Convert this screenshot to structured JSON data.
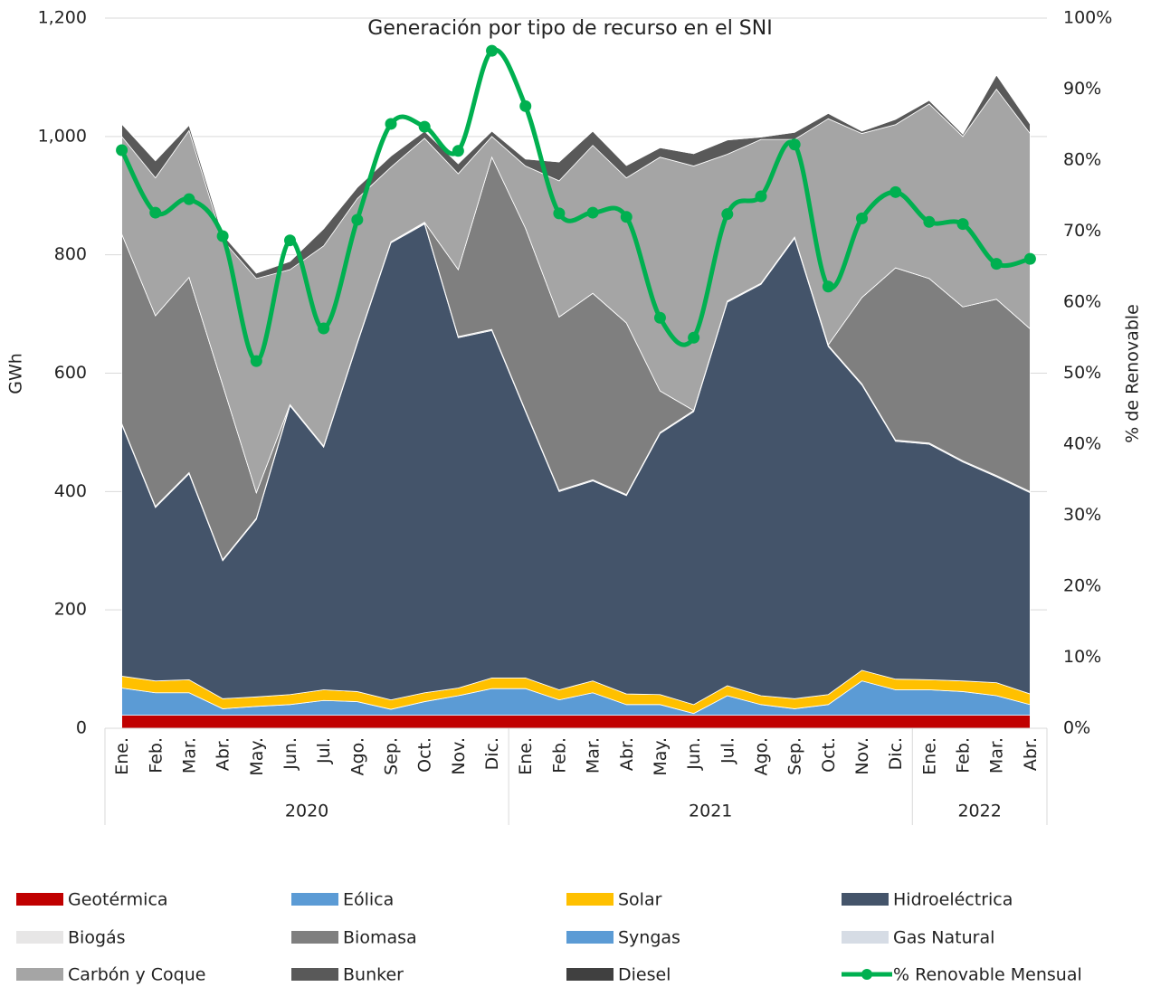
{
  "chart_data": {
    "type": "stacked_area_line",
    "title": "Generación por tipo de recurso en el  SNI",
    "y_label": "GWh",
    "y2_label": "% de Renovable",
    "categories": [
      "Ene.",
      "Feb.",
      "Mar.",
      "Abr.",
      "May.",
      "Jun.",
      "Jul.",
      "Ago.",
      "Sep.",
      "Oct.",
      "Nov.",
      "Dic.",
      "Ene.",
      "Feb.",
      "Mar.",
      "Abr.",
      "May.",
      "Jun.",
      "Jul.",
      "Ago.",
      "Sep.",
      "Oct.",
      "Nov.",
      "Dic.",
      "Ene.",
      "Feb.",
      "Mar.",
      "Abr."
    ],
    "year_groups": [
      {
        "label": "2020",
        "months": 12
      },
      {
        "label": "2021",
        "months": 12
      },
      {
        "label": "2022",
        "months": 4
      }
    ],
    "ylim": [
      0,
      1200
    ],
    "yticks": [
      0,
      200,
      400,
      600,
      800,
      {
        "value": 1000,
        "label": "1,000"
      },
      {
        "value": 1200,
        "label": "1,200"
      }
    ],
    "y2lim": [
      0,
      100
    ],
    "y2ticks": [
      {
        "value": 0,
        "label": "0%"
      },
      {
        "value": 10,
        "label": "10%"
      },
      {
        "value": 20,
        "label": "20%"
      },
      {
        "value": 30,
        "label": "30%"
      },
      {
        "value": 40,
        "label": "40%"
      },
      {
        "value": 50,
        "label": "50%"
      },
      {
        "value": 60,
        "label": "60%"
      },
      {
        "value": 70,
        "label": "70%"
      },
      {
        "value": 80,
        "label": "80%"
      },
      {
        "value": 90,
        "label": "90%"
      },
      {
        "value": 100,
        "label": "100%"
      }
    ],
    "grid": true,
    "legend": "bottom",
    "series": [
      {
        "name": "Geotérmica",
        "color": "#c00000",
        "values": [
          22,
          22,
          22,
          22,
          22,
          22,
          22,
          22,
          22,
          22,
          22,
          22,
          22,
          22,
          22,
          22,
          22,
          22,
          22,
          22,
          22,
          22,
          22,
          22,
          22,
          22,
          22,
          22
        ]
      },
      {
        "name": "Eólica",
        "color": "#5b9bd5",
        "values": [
          46,
          38,
          38,
          11,
          15,
          18,
          25,
          23,
          10,
          23,
          33,
          45,
          45,
          26,
          38,
          18,
          18,
          3,
          33,
          18,
          11,
          18,
          58,
          43,
          43,
          40,
          33,
          18
        ]
      },
      {
        "name": "Solar",
        "color": "#ffc000",
        "values": [
          20,
          20,
          22,
          17,
          16,
          17,
          18,
          17,
          16,
          15,
          13,
          18,
          18,
          17,
          20,
          18,
          17,
          15,
          17,
          15,
          17,
          17,
          18,
          18,
          17,
          18,
          22,
          18
        ]
      },
      {
        "name": "Hidroeléctrica",
        "color": "#44546a",
        "values": [
          425,
          293,
          348,
          233,
          300,
          488,
          410,
          588,
          772,
          792,
          592,
          587,
          450,
          335,
          338,
          335,
          441,
          495,
          648,
          695,
          778,
          588,
          482,
          402,
          398,
          370,
          348,
          340
        ]
      },
      {
        "name": "Biogás",
        "color": "#e7e6e6",
        "values": [
          2,
          2,
          2,
          2,
          2,
          2,
          2,
          2,
          2,
          2,
          2,
          2,
          2,
          2,
          2,
          2,
          2,
          2,
          2,
          2,
          2,
          2,
          2,
          2,
          2,
          2,
          2,
          2
        ]
      },
      {
        "name": "Biomasa",
        "color": "#7f7f7f",
        "values": [
          320,
          322,
          330,
          295,
          43,
          0,
          0,
          0,
          0,
          1,
          113,
          291,
          308,
          293,
          315,
          290,
          70,
          0,
          0,
          0,
          0,
          1,
          146,
          291,
          278,
          260,
          298,
          275
        ]
      },
      {
        "name": "Syngas",
        "color": "#5b9bd5",
        "values": [
          0,
          0,
          0,
          0,
          0,
          0,
          0,
          0,
          0,
          0,
          0,
          0,
          0,
          0,
          0,
          0,
          0,
          0,
          0,
          0,
          0,
          0,
          0,
          0,
          0,
          0,
          0,
          0
        ]
      },
      {
        "name": "Gas Natural",
        "color": "#d6dce5",
        "values": [
          0,
          0,
          0,
          0,
          0,
          0,
          0,
          0,
          0,
          0,
          0,
          0,
          0,
          0,
          0,
          0,
          0,
          0,
          0,
          0,
          0,
          0,
          0,
          0,
          0,
          0,
          0,
          0
        ]
      },
      {
        "name": "Carbón y Coque",
        "color": "#a5a5a5",
        "values": [
          165,
          233,
          248,
          245,
          362,
          228,
          338,
          243,
          126,
          142,
          162,
          35,
          105,
          230,
          250,
          245,
          395,
          413,
          248,
          243,
          165,
          382,
          277,
          242,
          295,
          288,
          355,
          330
        ]
      },
      {
        "name": "Bunker",
        "color": "#595959",
        "values": [
          21,
          29,
          9,
          9,
          9,
          14,
          29,
          19,
          19,
          12,
          17,
          9,
          12,
          32,
          24,
          21,
          16,
          21,
          24,
          4,
          12,
          9,
          4,
          9,
          6,
          4,
          24,
          16
        ]
      },
      {
        "name": "Diesel",
        "color": "#404040",
        "values": [
          1,
          1,
          1,
          1,
          1,
          1,
          1,
          1,
          1,
          1,
          1,
          1,
          1,
          1,
          1,
          1,
          1,
          1,
          1,
          1,
          1,
          1,
          1,
          1,
          1,
          1,
          1,
          1
        ]
      },
      {
        "name": "% Renovable Mensual",
        "color": "#00b050",
        "axis": "y2",
        "type": "line",
        "values": [
          81.4,
          72.6,
          74.5,
          69.3,
          51.7,
          68.7,
          56.3,
          71.6,
          85.1,
          84.7,
          81.3,
          95.4,
          87.6,
          72.5,
          72.6,
          72.0,
          57.8,
          55.0,
          72.4,
          74.9,
          82.2,
          62.2,
          71.8,
          75.5,
          71.3,
          71.0,
          65.4,
          66.1
        ]
      }
    ]
  }
}
